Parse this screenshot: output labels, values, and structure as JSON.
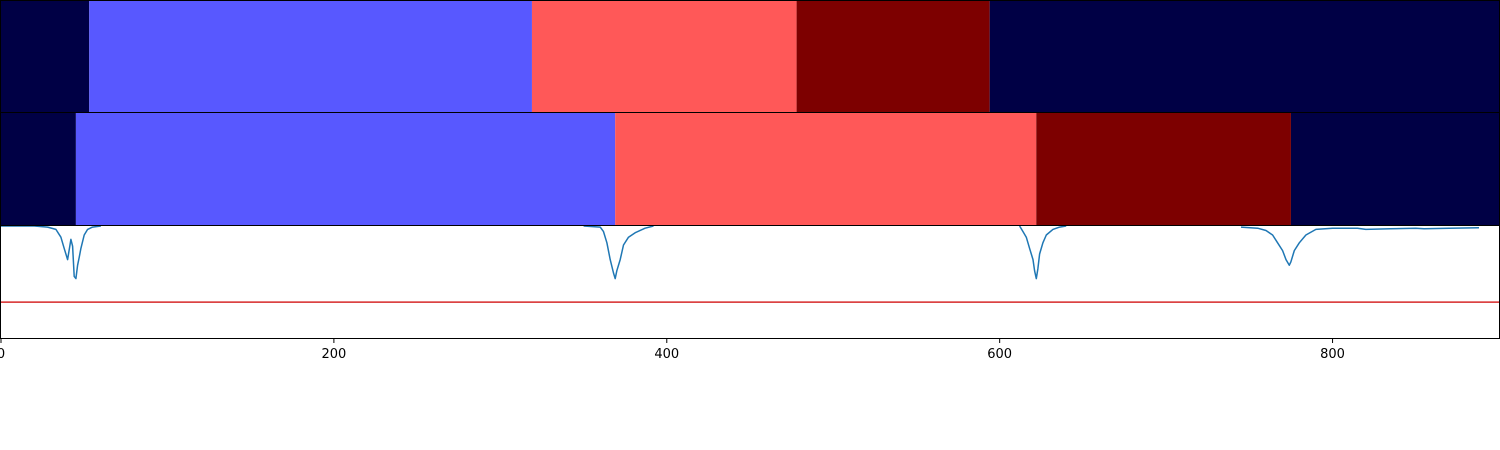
{
  "chart_data": [
    {
      "type": "bar",
      "orientation": "horizontal-segments",
      "xlim": [
        0,
        900
      ],
      "segments": [
        {
          "start": 0,
          "end": 53,
          "color": "#000045"
        },
        {
          "start": 53,
          "end": 319,
          "color": "#5858ff"
        },
        {
          "start": 319,
          "end": 478,
          "color": "#ff5858"
        },
        {
          "start": 478,
          "end": 594,
          "color": "#7d0000"
        },
        {
          "start": 594,
          "end": 900,
          "color": "#000045"
        }
      ]
    },
    {
      "type": "bar",
      "orientation": "horizontal-segments",
      "xlim": [
        0,
        900
      ],
      "segments": [
        {
          "start": 0,
          "end": 45,
          "color": "#000045"
        },
        {
          "start": 45,
          "end": 369,
          "color": "#5858ff"
        },
        {
          "start": 369,
          "end": 622,
          "color": "#ff5858"
        },
        {
          "start": 622,
          "end": 775,
          "color": "#7d0000"
        },
        {
          "start": 775,
          "end": 900,
          "color": "#000045"
        }
      ]
    },
    {
      "type": "line",
      "xlim": [
        0,
        900
      ],
      "ylim": [
        -1,
        0
      ],
      "xticks": [
        0,
        200,
        400,
        600,
        800
      ],
      "xtick_labels": [
        "0",
        "200",
        "400",
        "600",
        "800"
      ],
      "threshold": {
        "value": -0.68,
        "color": "#d62728"
      },
      "series": [
        {
          "color": "#1f77b4",
          "segments": [
            [
              [
                0,
                0
              ],
              [
                20,
                0
              ],
              [
                28,
                -0.01
              ],
              [
                33,
                -0.03
              ],
              [
                36,
                -0.1
              ],
              [
                38,
                -0.2
              ],
              [
                40,
                -0.3
              ],
              [
                42,
                -0.12
              ],
              [
                43,
                -0.18
              ],
              [
                44,
                -0.45
              ],
              [
                45,
                -0.47
              ],
              [
                46,
                -0.35
              ],
              [
                47,
                -0.28
              ],
              [
                48,
                -0.2
              ],
              [
                50,
                -0.08
              ],
              [
                52,
                -0.03
              ],
              [
                55,
                -0.01
              ],
              [
                60,
                0
              ]
            ],
            [
              [
                350,
                0
              ],
              [
                360,
                -0.01
              ],
              [
                362,
                -0.05
              ],
              [
                364,
                -0.15
              ],
              [
                366,
                -0.3
              ],
              [
                368,
                -0.42
              ],
              [
                369,
                -0.47
              ],
              [
                370,
                -0.4
              ],
              [
                372,
                -0.3
              ],
              [
                374,
                -0.17
              ],
              [
                377,
                -0.1
              ],
              [
                381,
                -0.06
              ],
              [
                387,
                -0.02
              ],
              [
                392,
                0
              ]
            ],
            [
              [
                612,
                0
              ],
              [
                614,
                -0.05
              ],
              [
                616,
                -0.1
              ],
              [
                618,
                -0.2
              ],
              [
                620,
                -0.3
              ],
              [
                621,
                -0.4
              ],
              [
                622,
                -0.47
              ],
              [
                623,
                -0.38
              ],
              [
                624,
                -0.25
              ],
              [
                626,
                -0.15
              ],
              [
                628,
                -0.08
              ],
              [
                632,
                -0.03
              ],
              [
                636,
                -0.01
              ],
              [
                640,
                0
              ]
            ],
            [
              [
                745,
                -0.01
              ],
              [
                755,
                -0.02
              ],
              [
                760,
                -0.04
              ],
              [
                764,
                -0.08
              ],
              [
                767,
                -0.15
              ],
              [
                770,
                -0.22
              ],
              [
                772,
                -0.3
              ],
              [
                774,
                -0.35
              ],
              [
                775,
                -0.32
              ],
              [
                777,
                -0.22
              ],
              [
                780,
                -0.15
              ],
              [
                784,
                -0.08
              ],
              [
                790,
                -0.03
              ],
              [
                800,
                -0.02
              ],
              [
                810,
                -0.02
              ],
              [
                815,
                -0.02
              ],
              [
                820,
                -0.03
              ],
              [
                835,
                -0.025
              ],
              [
                850,
                -0.02
              ],
              [
                855,
                -0.025
              ],
              [
                870,
                -0.02
              ],
              [
                888,
                -0.015
              ]
            ]
          ]
        }
      ]
    }
  ]
}
